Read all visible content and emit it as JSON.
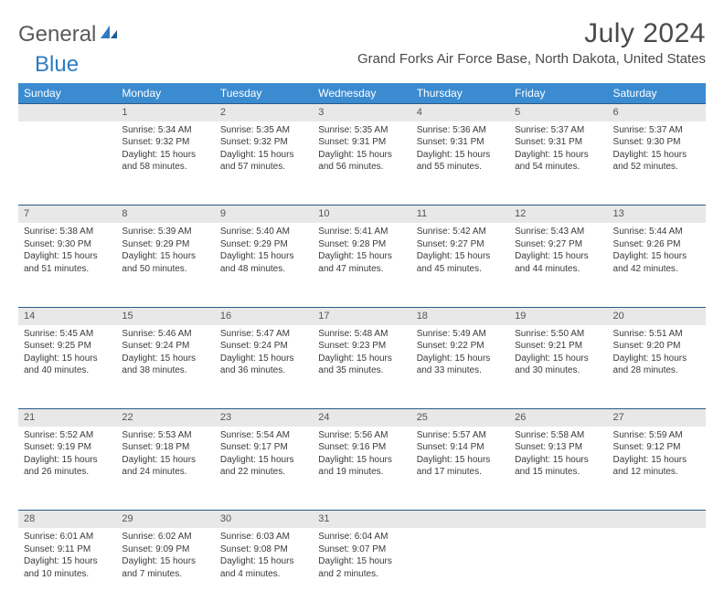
{
  "brand": {
    "general": "General",
    "blue": "Blue"
  },
  "header": {
    "month_title": "July 2024",
    "location": "Grand Forks Air Force Base, North Dakota, United States"
  },
  "colors": {
    "header_bg": "#3b8bd0",
    "header_text": "#ffffff",
    "daynum_bg": "#e8e8e8",
    "rule": "#2a5a8a",
    "text": "#3a3a3a",
    "brand_blue": "#2e7cc0"
  },
  "calendar": {
    "day_labels": [
      "Sunday",
      "Monday",
      "Tuesday",
      "Wednesday",
      "Thursday",
      "Friday",
      "Saturday"
    ],
    "first_weekday": 1,
    "days": [
      {
        "n": 1,
        "sunrise": "5:34 AM",
        "sunset": "9:32 PM",
        "daylight": "15 hours and 58 minutes."
      },
      {
        "n": 2,
        "sunrise": "5:35 AM",
        "sunset": "9:32 PM",
        "daylight": "15 hours and 57 minutes."
      },
      {
        "n": 3,
        "sunrise": "5:35 AM",
        "sunset": "9:31 PM",
        "daylight": "15 hours and 56 minutes."
      },
      {
        "n": 4,
        "sunrise": "5:36 AM",
        "sunset": "9:31 PM",
        "daylight": "15 hours and 55 minutes."
      },
      {
        "n": 5,
        "sunrise": "5:37 AM",
        "sunset": "9:31 PM",
        "daylight": "15 hours and 54 minutes."
      },
      {
        "n": 6,
        "sunrise": "5:37 AM",
        "sunset": "9:30 PM",
        "daylight": "15 hours and 52 minutes."
      },
      {
        "n": 7,
        "sunrise": "5:38 AM",
        "sunset": "9:30 PM",
        "daylight": "15 hours and 51 minutes."
      },
      {
        "n": 8,
        "sunrise": "5:39 AM",
        "sunset": "9:29 PM",
        "daylight": "15 hours and 50 minutes."
      },
      {
        "n": 9,
        "sunrise": "5:40 AM",
        "sunset": "9:29 PM",
        "daylight": "15 hours and 48 minutes."
      },
      {
        "n": 10,
        "sunrise": "5:41 AM",
        "sunset": "9:28 PM",
        "daylight": "15 hours and 47 minutes."
      },
      {
        "n": 11,
        "sunrise": "5:42 AM",
        "sunset": "9:27 PM",
        "daylight": "15 hours and 45 minutes."
      },
      {
        "n": 12,
        "sunrise": "5:43 AM",
        "sunset": "9:27 PM",
        "daylight": "15 hours and 44 minutes."
      },
      {
        "n": 13,
        "sunrise": "5:44 AM",
        "sunset": "9:26 PM",
        "daylight": "15 hours and 42 minutes."
      },
      {
        "n": 14,
        "sunrise": "5:45 AM",
        "sunset": "9:25 PM",
        "daylight": "15 hours and 40 minutes."
      },
      {
        "n": 15,
        "sunrise": "5:46 AM",
        "sunset": "9:24 PM",
        "daylight": "15 hours and 38 minutes."
      },
      {
        "n": 16,
        "sunrise": "5:47 AM",
        "sunset": "9:24 PM",
        "daylight": "15 hours and 36 minutes."
      },
      {
        "n": 17,
        "sunrise": "5:48 AM",
        "sunset": "9:23 PM",
        "daylight": "15 hours and 35 minutes."
      },
      {
        "n": 18,
        "sunrise": "5:49 AM",
        "sunset": "9:22 PM",
        "daylight": "15 hours and 33 minutes."
      },
      {
        "n": 19,
        "sunrise": "5:50 AM",
        "sunset": "9:21 PM",
        "daylight": "15 hours and 30 minutes."
      },
      {
        "n": 20,
        "sunrise": "5:51 AM",
        "sunset": "9:20 PM",
        "daylight": "15 hours and 28 minutes."
      },
      {
        "n": 21,
        "sunrise": "5:52 AM",
        "sunset": "9:19 PM",
        "daylight": "15 hours and 26 minutes."
      },
      {
        "n": 22,
        "sunrise": "5:53 AM",
        "sunset": "9:18 PM",
        "daylight": "15 hours and 24 minutes."
      },
      {
        "n": 23,
        "sunrise": "5:54 AM",
        "sunset": "9:17 PM",
        "daylight": "15 hours and 22 minutes."
      },
      {
        "n": 24,
        "sunrise": "5:56 AM",
        "sunset": "9:16 PM",
        "daylight": "15 hours and 19 minutes."
      },
      {
        "n": 25,
        "sunrise": "5:57 AM",
        "sunset": "9:14 PM",
        "daylight": "15 hours and 17 minutes."
      },
      {
        "n": 26,
        "sunrise": "5:58 AM",
        "sunset": "9:13 PM",
        "daylight": "15 hours and 15 minutes."
      },
      {
        "n": 27,
        "sunrise": "5:59 AM",
        "sunset": "9:12 PM",
        "daylight": "15 hours and 12 minutes."
      },
      {
        "n": 28,
        "sunrise": "6:01 AM",
        "sunset": "9:11 PM",
        "daylight": "15 hours and 10 minutes."
      },
      {
        "n": 29,
        "sunrise": "6:02 AM",
        "sunset": "9:09 PM",
        "daylight": "15 hours and 7 minutes."
      },
      {
        "n": 30,
        "sunrise": "6:03 AM",
        "sunset": "9:08 PM",
        "daylight": "15 hours and 4 minutes."
      },
      {
        "n": 31,
        "sunrise": "6:04 AM",
        "sunset": "9:07 PM",
        "daylight": "15 hours and 2 minutes."
      }
    ],
    "labels": {
      "sunrise_prefix": "Sunrise: ",
      "sunset_prefix": "Sunset: ",
      "daylight_prefix": "Daylight: "
    }
  }
}
